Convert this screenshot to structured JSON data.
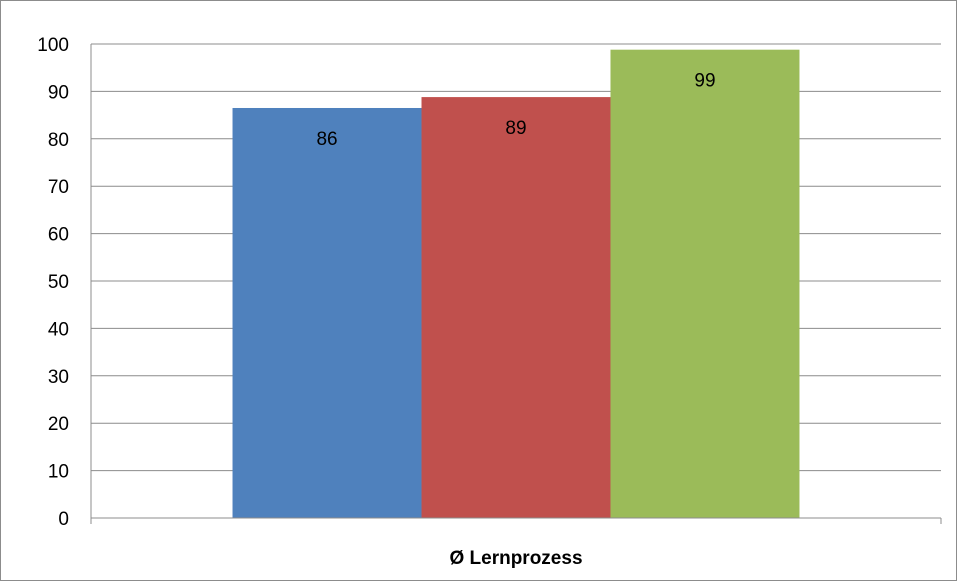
{
  "chart_data": {
    "type": "bar",
    "categories": [
      "Ø Lernprozess"
    ],
    "series": [
      {
        "values": [
          86.5
        ],
        "label": "86",
        "color": "#4f81bd"
      },
      {
        "values": [
          88.8
        ],
        "label": "89",
        "color": "#c0504d"
      },
      {
        "values": [
          98.8
        ],
        "label": "99",
        "color": "#9bbb59"
      }
    ],
    "ylim": [
      0,
      100
    ],
    "yticks": [
      0,
      10,
      20,
      30,
      40,
      50,
      60,
      70,
      80,
      90,
      100
    ],
    "grid": true,
    "legend": "none",
    "gridline_color": "#8c8c8c"
  }
}
